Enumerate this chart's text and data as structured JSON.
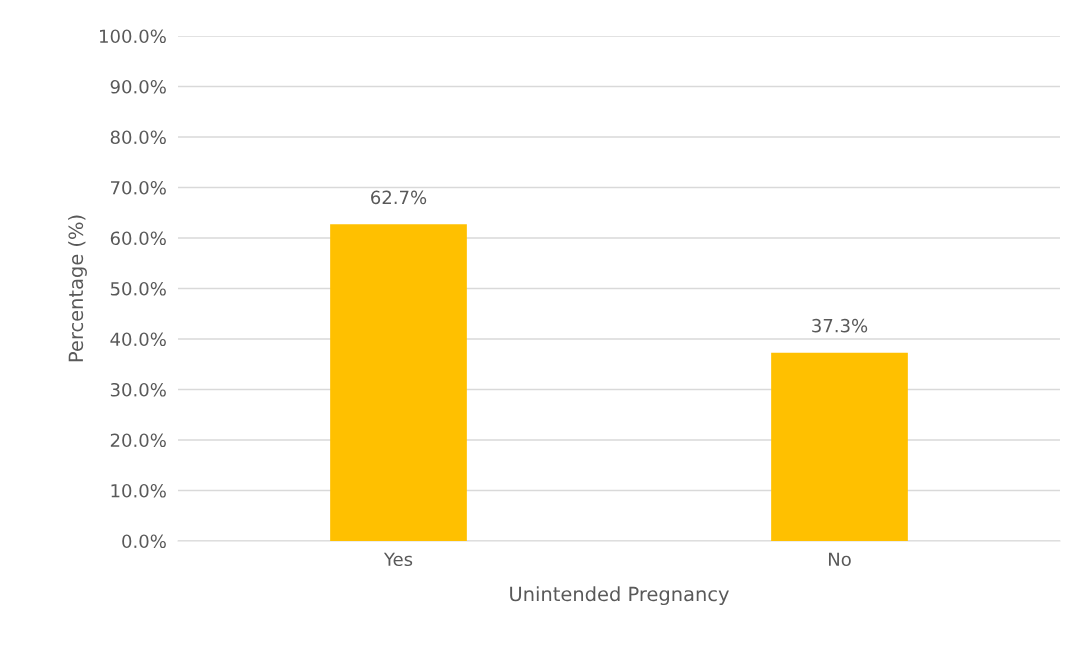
{
  "chart_data": {
    "type": "bar",
    "xlabel": "Unintended Pregnancy",
    "ylabel": "Percentage (%)",
    "categories": [
      "Yes",
      "No"
    ],
    "values": [
      62.7,
      37.3
    ],
    "color": "#ffc000",
    "value_labels": [
      "62.7%",
      "37.3%"
    ],
    "ylim": [
      0,
      100
    ],
    "yticks": [
      {
        "value": 0,
        "label": "0.0%"
      },
      {
        "value": 10,
        "label": "10.0%"
      },
      {
        "value": 20,
        "label": "20.0%"
      },
      {
        "value": 30,
        "label": "30.0%"
      },
      {
        "value": 40,
        "label": "40.0%"
      },
      {
        "value": 50,
        "label": "50.0%"
      },
      {
        "value": 60,
        "label": "60.0%"
      },
      {
        "value": 70,
        "label": "70.0%"
      },
      {
        "value": 80,
        "label": "80.0%"
      },
      {
        "value": 90,
        "label": "90.0%"
      },
      {
        "value": 100,
        "label": "100.0%"
      }
    ],
    "grid": "y",
    "legend": false
  }
}
